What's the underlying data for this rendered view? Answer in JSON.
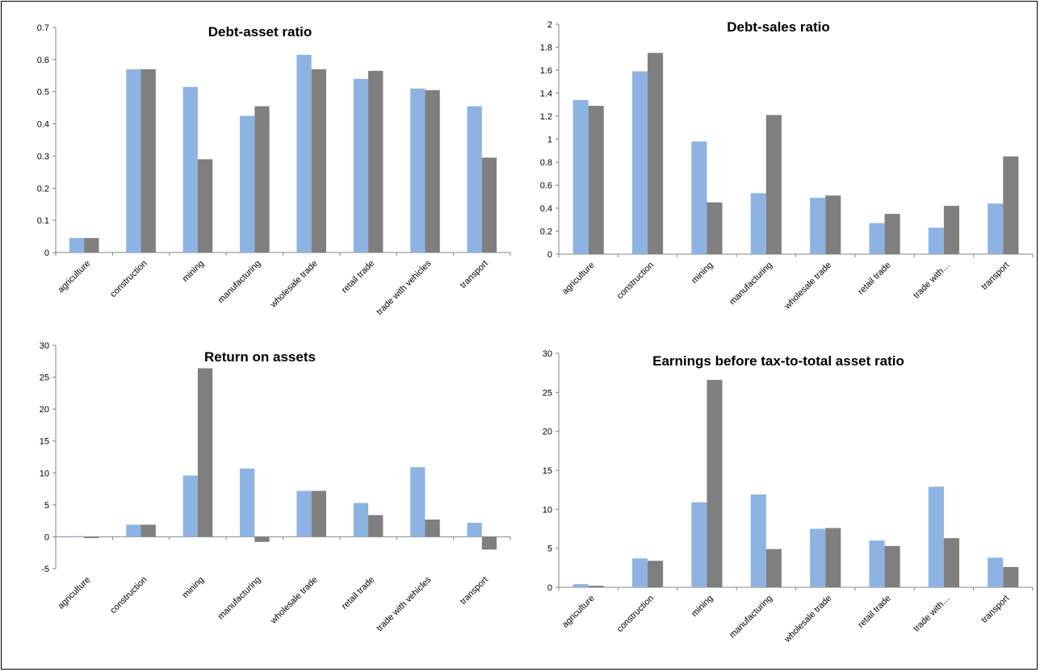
{
  "colors": {
    "series_a": "#8db3e2",
    "series_b": "#7f7f7f",
    "axis": "#868686"
  },
  "chart_data": [
    {
      "type": "bar",
      "title": "Debt-asset ratio",
      "categories": [
        "agriculture",
        "construction",
        "mining",
        "manufacturing",
        "wholesale trade",
        "retail trade",
        "trade with vehicles",
        "transport"
      ],
      "series": [
        {
          "values": [
            0.045,
            0.57,
            0.515,
            0.425,
            0.615,
            0.54,
            0.51,
            0.455
          ]
        },
        {
          "values": [
            0.045,
            0.57,
            0.29,
            0.455,
            0.57,
            0.565,
            0.505,
            0.295
          ]
        }
      ],
      "ylim": [
        0,
        0.7
      ],
      "yticks": [
        "0",
        "0.1",
        "0.2",
        "0.3",
        "0.4",
        "0.5",
        "0.6",
        "0.7"
      ],
      "ytick_values": [
        0,
        0.1,
        0.2,
        0.3,
        0.4,
        0.5,
        0.6,
        0.7
      ]
    },
    {
      "type": "bar",
      "title": "Debt-sales ratio",
      "categories": [
        "agriculture",
        "construction",
        "mining",
        "manufacturing",
        "wholesale trade",
        "retail trade",
        "trade with…",
        "transport"
      ],
      "series": [
        {
          "values": [
            1.34,
            1.59,
            0.98,
            0.53,
            0.49,
            0.27,
            0.23,
            0.44
          ]
        },
        {
          "values": [
            1.29,
            1.75,
            0.45,
            1.21,
            0.51,
            0.35,
            0.42,
            0.85
          ]
        }
      ],
      "ylim": [
        0,
        2
      ],
      "yticks": [
        "0",
        "0.2",
        "0.4",
        "0.6",
        "0.8",
        "1",
        "1.2",
        "1.4",
        "1.6",
        "1.8",
        "2"
      ],
      "ytick_values": [
        0,
        0.2,
        0.4,
        0.6,
        0.8,
        1,
        1.2,
        1.4,
        1.6,
        1.8,
        2
      ]
    },
    {
      "type": "bar",
      "title": "Return on assets",
      "categories": [
        "agriculture",
        "construction",
        "mining",
        "manufacturing",
        "wholesale trade",
        "retail trade",
        "trade with vehicles",
        "transport"
      ],
      "series": [
        {
          "values": [
            0.1,
            1.9,
            9.6,
            10.7,
            7.2,
            5.3,
            10.9,
            2.2
          ]
        },
        {
          "values": [
            -0.2,
            1.9,
            26.4,
            -0.8,
            7.2,
            3.4,
            2.7,
            -2.0
          ]
        }
      ],
      "ylim": [
        -5,
        30
      ],
      "yticks": [
        "-5",
        "0",
        "5",
        "10",
        "15",
        "20",
        "25",
        "30"
      ],
      "ytick_values": [
        -5,
        0,
        5,
        10,
        15,
        20,
        25,
        30
      ]
    },
    {
      "type": "bar",
      "title": "Earnings before tax-to-total asset ratio",
      "categories": [
        "agriculture",
        "construction",
        "mining",
        "manufacturing",
        "wholesale trade",
        "retail trade",
        "trade with…",
        "transport"
      ],
      "series": [
        {
          "values": [
            0.4,
            3.7,
            10.9,
            11.9,
            7.5,
            6.0,
            12.9,
            3.8
          ]
        },
        {
          "values": [
            0.2,
            3.4,
            26.6,
            4.9,
            7.6,
            5.3,
            6.3,
            2.6
          ]
        }
      ],
      "ylim": [
        0,
        30
      ],
      "yticks": [
        "0",
        "5",
        "10",
        "15",
        "20",
        "25",
        "30"
      ],
      "ytick_values": [
        0,
        5,
        10,
        15,
        20,
        25,
        30
      ]
    }
  ]
}
